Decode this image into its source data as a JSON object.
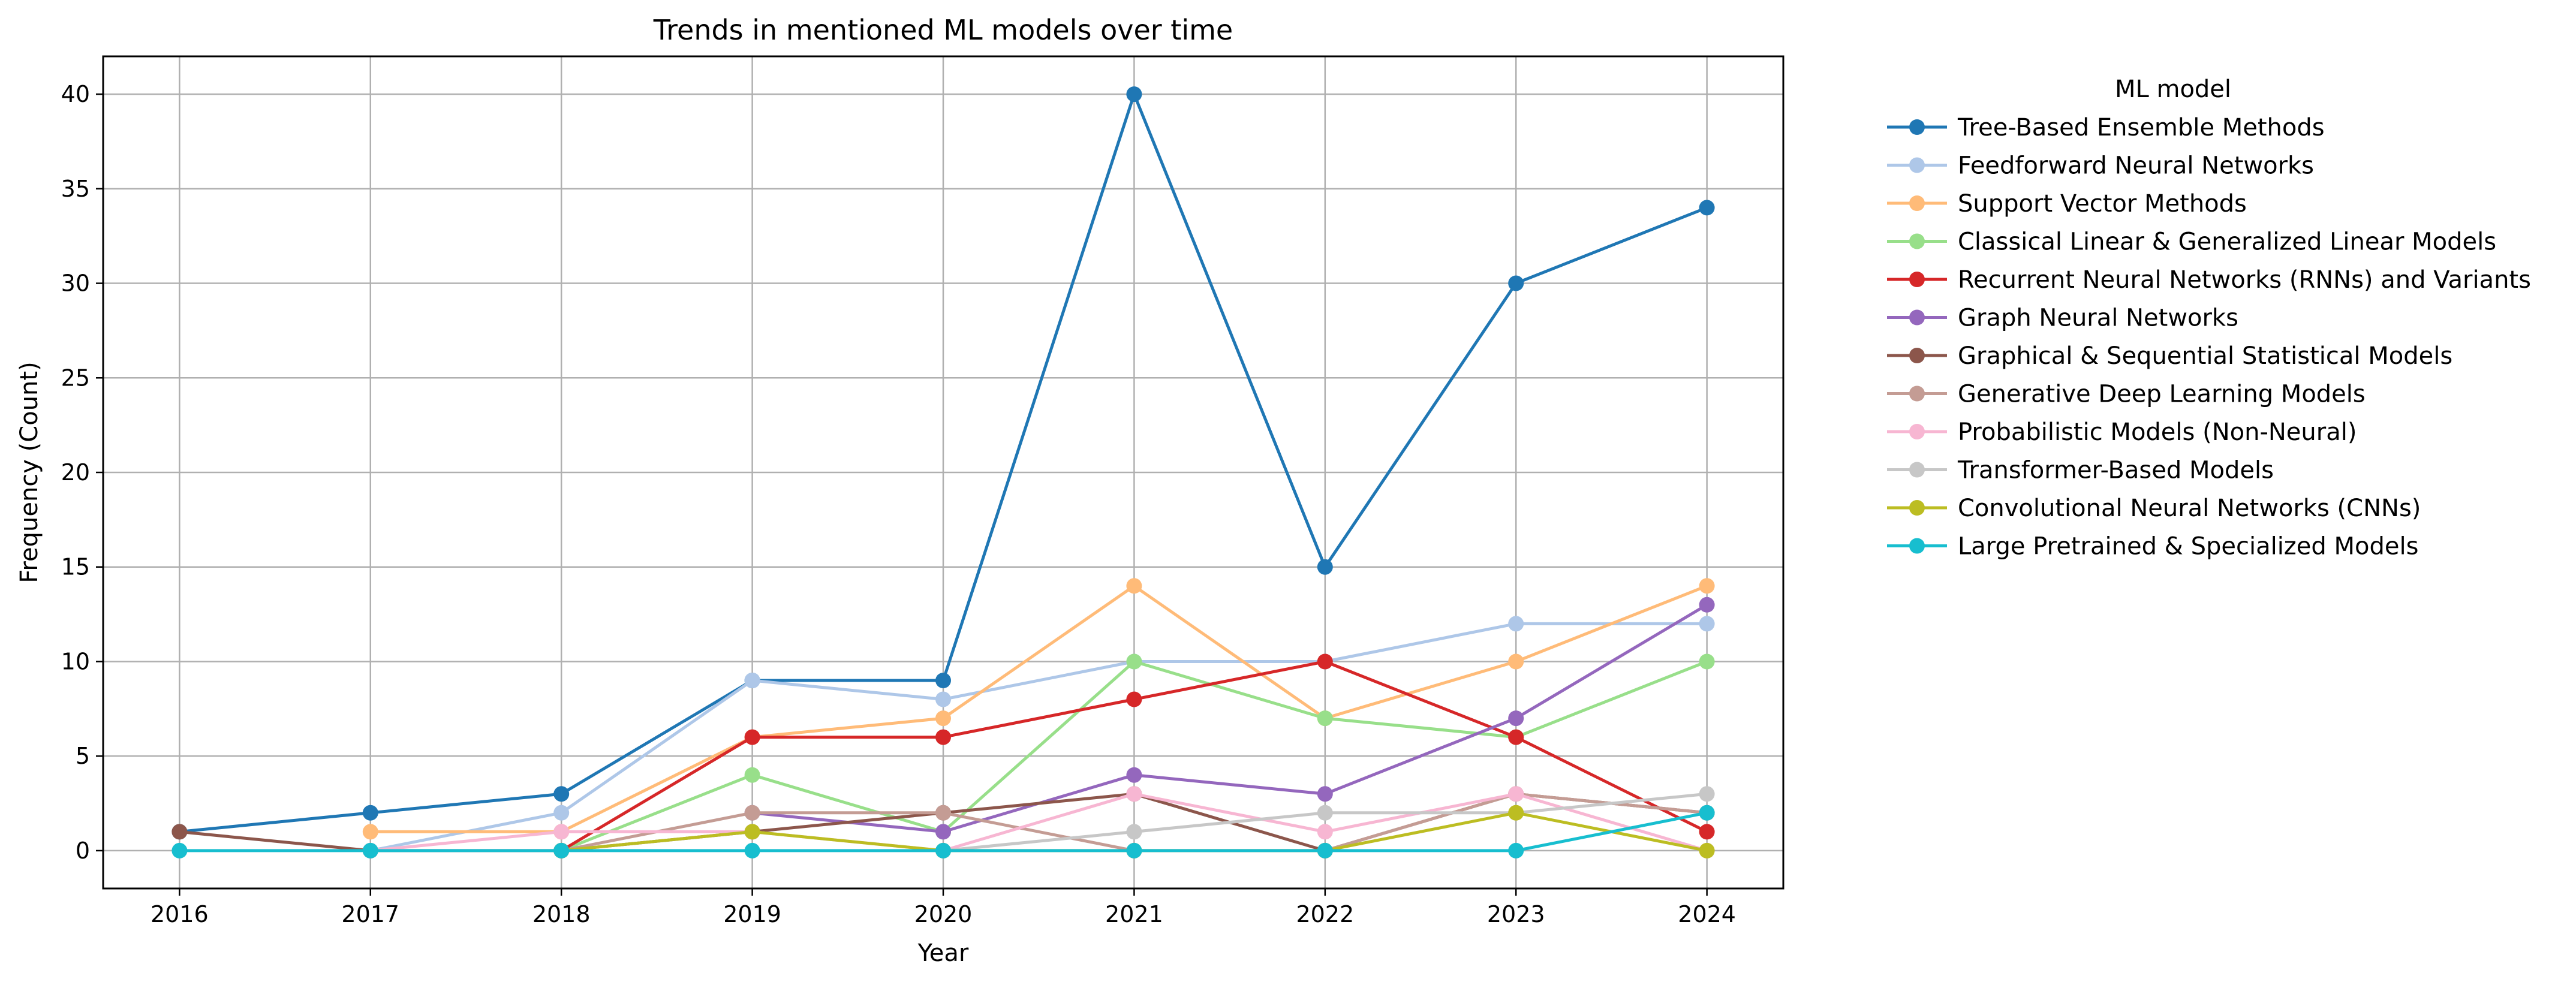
{
  "chart_data": {
    "type": "line",
    "title": "Trends in mentioned ML models over time",
    "xlabel": "Year",
    "ylabel": "Frequency (Count)",
    "x": [
      2016,
      2017,
      2018,
      2019,
      2020,
      2021,
      2022,
      2023,
      2024
    ],
    "x_tick_labels": [
      "2016",
      "2017",
      "2018",
      "2019",
      "2020",
      "2021",
      "2022",
      "2023",
      "2024"
    ],
    "xlim": [
      2015.6,
      2024.4
    ],
    "ylim": [
      -2,
      42
    ],
    "y_ticks": [
      0,
      5,
      10,
      15,
      20,
      25,
      30,
      35,
      40
    ],
    "y_tick_labels": [
      "0",
      "5",
      "10",
      "15",
      "20",
      "25",
      "30",
      "35",
      "40"
    ],
    "grid": true,
    "legend_title": "ML model",
    "legend_position": "outside-right",
    "series": [
      {
        "name": "Tree-Based Ensemble Methods",
        "color": "#1f77b4",
        "values": [
          1,
          2,
          3,
          9,
          9,
          40,
          15,
          30,
          34
        ]
      },
      {
        "name": "Feedforward Neural Networks",
        "color": "#aec7e8",
        "values": [
          null,
          0,
          2,
          9,
          8,
          10,
          10,
          12,
          12
        ]
      },
      {
        "name": "Support Vector Methods",
        "color": "#ffbb78",
        "values": [
          null,
          1,
          1,
          6,
          7,
          14,
          7,
          10,
          14
        ]
      },
      {
        "name": "Classical Linear & Generalized Linear Models",
        "color": "#98df8a",
        "values": [
          null,
          null,
          0,
          4,
          1,
          10,
          7,
          6,
          10
        ]
      },
      {
        "name": "Recurrent Neural Networks (RNNs) and Variants",
        "color": "#d62728",
        "values": [
          null,
          null,
          0,
          6,
          6,
          8,
          10,
          6,
          1
        ]
      },
      {
        "name": "Graph Neural Networks",
        "color": "#9467bd",
        "values": [
          null,
          null,
          null,
          2,
          1,
          4,
          3,
          7,
          13
        ]
      },
      {
        "name": "Graphical & Sequential Statistical Models",
        "color": "#8c564b",
        "values": [
          1,
          0,
          0,
          1,
          2,
          3,
          0,
          3,
          2
        ]
      },
      {
        "name": "Generative Deep Learning Models",
        "color": "#c49c94",
        "values": [
          null,
          null,
          0,
          2,
          2,
          0,
          0,
          3,
          2
        ]
      },
      {
        "name": "Probabilistic Models (Non-Neural)",
        "color": "#f7b6d2",
        "values": [
          null,
          0,
          1,
          1,
          0,
          3,
          1,
          3,
          0
        ]
      },
      {
        "name": "Transformer-Based Models",
        "color": "#c7c7c7",
        "values": [
          null,
          null,
          null,
          null,
          0,
          1,
          2,
          2,
          3
        ]
      },
      {
        "name": "Convolutional Neural Networks (CNNs)",
        "color": "#bcbd22",
        "values": [
          null,
          null,
          0,
          1,
          0,
          0,
          0,
          2,
          0
        ]
      },
      {
        "name": "Large Pretrained & Specialized Models",
        "color": "#17becf",
        "values": [
          0,
          0,
          0,
          0,
          0,
          0,
          0,
          0,
          2
        ]
      }
    ]
  }
}
